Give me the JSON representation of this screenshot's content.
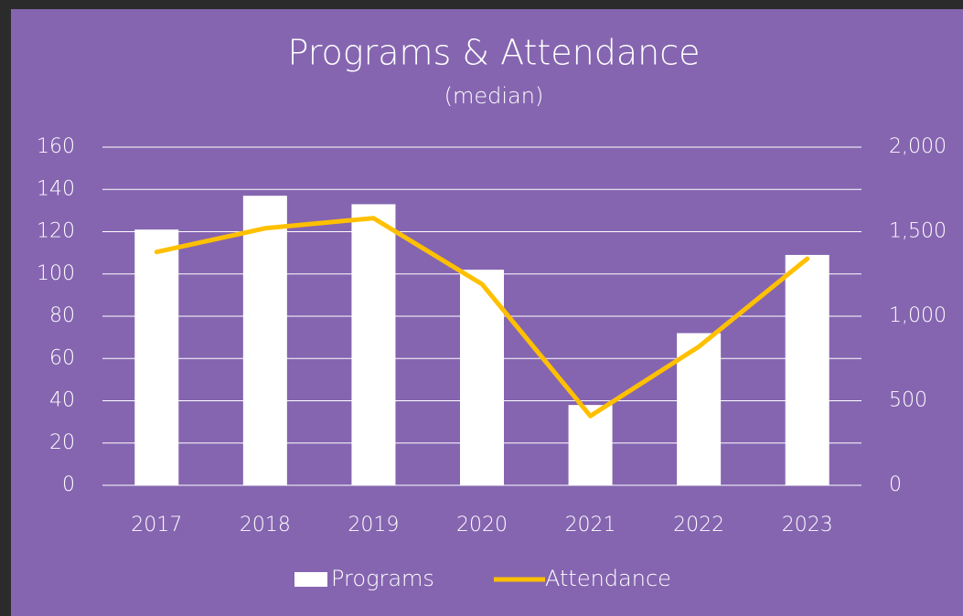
{
  "chart_data": {
    "type": "bar-line",
    "title": "Programs & Attendance",
    "subtitle": "(median)",
    "categories": [
      "2017",
      "2018",
      "2019",
      "2020",
      "2021",
      "2022",
      "2023"
    ],
    "series": [
      {
        "name": "Programs",
        "type": "bar",
        "color": "#ffffff",
        "values": [
          121,
          137,
          133,
          102,
          38,
          72,
          109
        ]
      },
      {
        "name": "Attendance",
        "type": "line",
        "color": "#ffc000",
        "axis": "y2",
        "values": [
          1380,
          1520,
          1580,
          1190,
          410,
          820,
          1340
        ]
      }
    ],
    "ylim": [
      0,
      160
    ],
    "yticks": [
      0,
      20,
      40,
      60,
      80,
      100,
      120,
      140,
      160
    ],
    "y2lim": [
      0,
      2000
    ],
    "y2ticks": [
      0,
      500,
      {
        "value": 1000,
        "label": "1,000"
      },
      {
        "value": 1500,
        "label": "1,500"
      },
      {
        "value": 2000,
        "label": "2,000"
      }
    ],
    "grid": true,
    "legend": "bottom"
  }
}
